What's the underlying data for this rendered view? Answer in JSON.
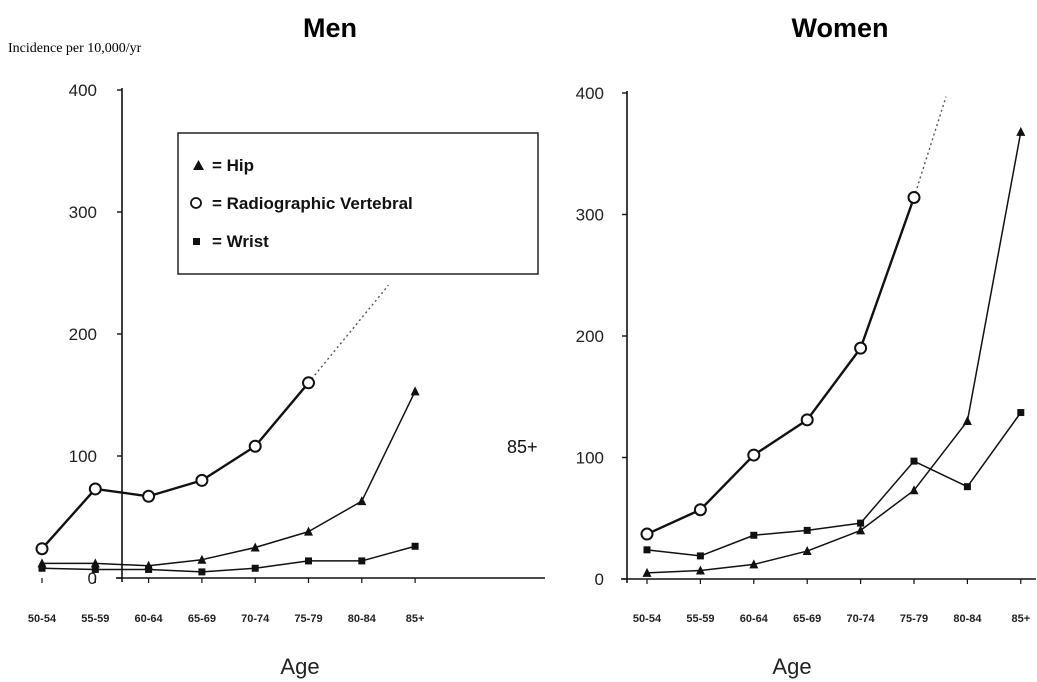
{
  "figure": {
    "ylabel": "Incidence per 10,000/yr",
    "xlabel": "Age"
  },
  "legend": {
    "items": [
      {
        "label": "= Hip",
        "marker": "triangle"
      },
      {
        "label": "= Radiographic Vertebral",
        "marker": "open-circle"
      },
      {
        "label": "= Wrist",
        "marker": "square"
      }
    ]
  },
  "chart_data": [
    {
      "type": "line",
      "title": "Men",
      "xlabel": "Age",
      "ylabel": "Incidence per 10,000/yr",
      "ylim": [
        0,
        400
      ],
      "yticks": [
        0,
        100,
        200,
        300,
        400
      ],
      "categories": [
        "50-54",
        "55-59",
        "60-64",
        "65-69",
        "70-74",
        "75-79",
        "80-84",
        "85+"
      ],
      "series": [
        {
          "name": "Hip",
          "marker": "triangle",
          "values": [
            12,
            12,
            10,
            15,
            25,
            38,
            63,
            153
          ]
        },
        {
          "name": "Radiographic Vertebral",
          "marker": "open-circle",
          "values": [
            24,
            73,
            67,
            80,
            108,
            160,
            null,
            null
          ],
          "extrapolated_to": [
            6.5,
            240
          ]
        },
        {
          "name": "Wrist",
          "marker": "square",
          "values": [
            8,
            7,
            7,
            5,
            8,
            14,
            14,
            26
          ]
        }
      ],
      "annotations": [
        "85+"
      ],
      "grid": false,
      "legend_position": "top-right"
    },
    {
      "type": "line",
      "title": "Women",
      "xlabel": "Age",
      "ylim": [
        0,
        400
      ],
      "yticks": [
        0,
        100,
        200,
        300,
        400
      ],
      "categories": [
        "50-54",
        "55-59",
        "60-64",
        "65-69",
        "70-74",
        "75-79",
        "80-84",
        "85+"
      ],
      "series": [
        {
          "name": "Hip",
          "marker": "triangle",
          "values": [
            5,
            7,
            12,
            23,
            40,
            73,
            130,
            368
          ]
        },
        {
          "name": "Radiographic Vertebral",
          "marker": "open-circle",
          "values": [
            37,
            57,
            102,
            131,
            190,
            314,
            null,
            null
          ],
          "extrapolated_to": [
            5.6,
            397
          ]
        },
        {
          "name": "Wrist",
          "marker": "square",
          "values": [
            24,
            19,
            36,
            40,
            46,
            97,
            76,
            137
          ]
        }
      ],
      "grid": false
    }
  ]
}
